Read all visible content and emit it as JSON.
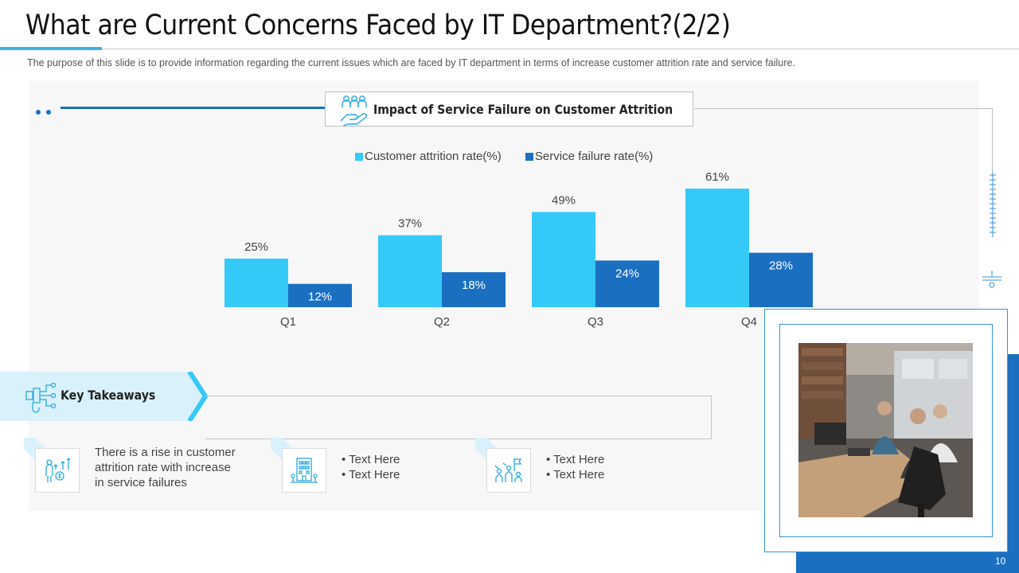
{
  "slide": {
    "title": "What are Current Concerns Faced by IT Department?(2/2)",
    "subtitle": "The purpose of this slide is to provide information regarding the current issues which are faced by IT department in terms of increase customer attrition rate and service failure.",
    "page_number": "10"
  },
  "colors": {
    "accent_light": "#35c9f7",
    "accent_dark": "#1a6fc0",
    "light_blue_band": "#d9f1fb"
  },
  "chart_data": {
    "type": "bar",
    "title": "Impact of Service Failure on Customer Attrition",
    "categories": [
      "Q1",
      "Q2",
      "Q3",
      "Q4"
    ],
    "series": [
      {
        "name": "Customer attrition rate(%)",
        "values": [
          25,
          37,
          49,
          61
        ],
        "labels": [
          "25%",
          "37%",
          "49%",
          "61%"
        ],
        "color": "#35c9f7"
      },
      {
        "name": "Service failure rate(%)",
        "values": [
          12,
          18,
          24,
          28
        ],
        "labels": [
          "12%",
          "18%",
          "24%",
          "28%"
        ],
        "color": "#1a6fc0"
      }
    ],
    "ylim": [
      0,
      61
    ],
    "legend": "top",
    "grid": false
  },
  "takeaways": {
    "heading": "Key Takeaways",
    "items": [
      {
        "icon": "people-growth-icon",
        "lines": [
          "There is a rise in customer",
          "attrition rate with increase",
          "in service failures"
        ]
      },
      {
        "icon": "office-building-icon",
        "lines": [
          "• Text Here",
          "• Text Here"
        ]
      },
      {
        "icon": "team-flag-icon",
        "lines": [
          "• Text Here",
          "• Text Here"
        ]
      }
    ]
  },
  "icons": {
    "header": "hand-holding-people-icon",
    "takeaways": "decision-network-icon",
    "photo": "office-meeting-photo"
  }
}
